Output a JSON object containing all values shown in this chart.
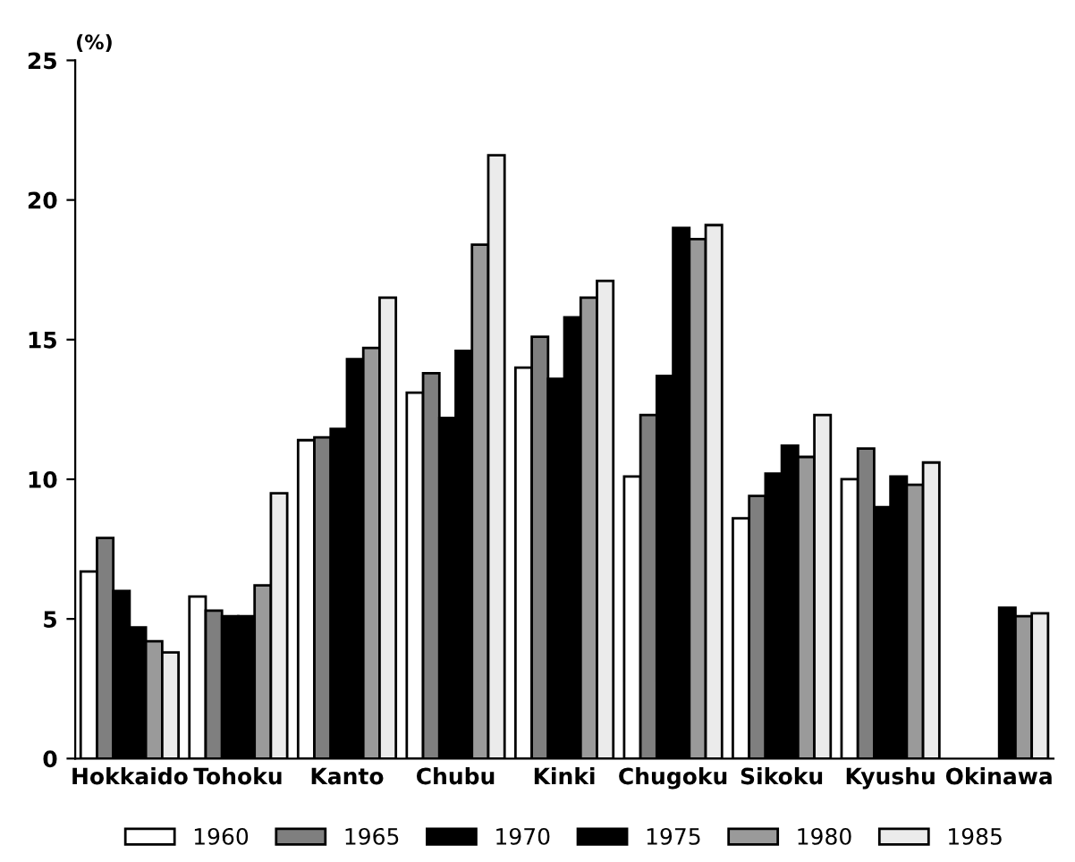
{
  "chart_data": {
    "type": "bar",
    "ylabel": "(%)",
    "categories": [
      "Hokkaido",
      "Tohoku",
      "Kanto",
      "Chubu",
      "Kinki",
      "Chugoku",
      "Sikoku",
      "Kyushu",
      "Okinawa"
    ],
    "series": [
      {
        "name": "1960",
        "color": "#ffffff",
        "values": [
          6.7,
          5.8,
          11.4,
          13.1,
          14.0,
          10.1,
          8.6,
          10.0,
          null
        ]
      },
      {
        "name": "1965",
        "color": "#7f7f7f",
        "values": [
          7.9,
          5.3,
          11.5,
          13.8,
          15.1,
          12.3,
          9.4,
          11.1,
          null
        ]
      },
      {
        "name": "1970",
        "color": "#000000",
        "values": [
          6.0,
          5.1,
          11.8,
          12.2,
          13.6,
          13.7,
          10.2,
          9.0,
          null
        ]
      },
      {
        "name": "1975",
        "color": "#000000",
        "values": [
          4.7,
          5.1,
          14.3,
          14.6,
          15.8,
          19.0,
          11.2,
          10.1,
          5.4
        ]
      },
      {
        "name": "1980",
        "color": "#9a9a9a",
        "values": [
          4.2,
          6.2,
          14.7,
          18.4,
          16.5,
          18.6,
          10.8,
          9.8,
          5.1
        ]
      },
      {
        "name": "1985",
        "color": "#ebebeb",
        "values": [
          3.8,
          9.5,
          16.5,
          21.6,
          17.1,
          19.1,
          12.3,
          10.6,
          5.2
        ]
      }
    ],
    "ylim": [
      0,
      25
    ],
    "yticks": [
      0,
      5,
      10,
      15,
      20,
      25
    ],
    "grid": false,
    "legend": "bottom"
  }
}
